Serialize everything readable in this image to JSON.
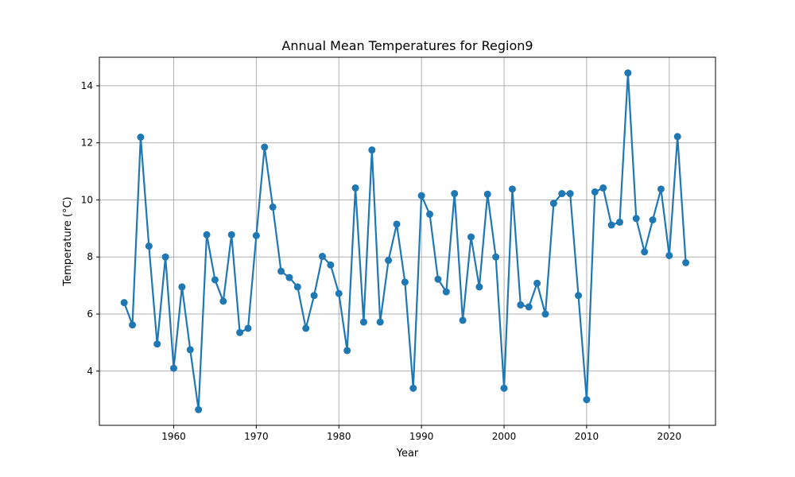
{
  "chart_data": {
    "type": "line",
    "title": "Annual Mean Temperatures for Region9",
    "xlabel": "Year",
    "ylabel": "Temperature (°C)",
    "xlim": [
      1951,
      2025.6
    ],
    "ylim": [
      2.1,
      15.0
    ],
    "xticks": [
      1960,
      1970,
      1980,
      1990,
      2000,
      2010,
      2020
    ],
    "yticks": [
      4,
      6,
      8,
      10,
      12,
      14
    ],
    "grid": true,
    "legend": "none",
    "marker": "circle",
    "color": "#1f77b4",
    "series": [
      {
        "x": [
          1954,
          1955,
          1956,
          1957,
          1958,
          1959,
          1960,
          1961,
          1962,
          1963,
          1964,
          1965,
          1966,
          1967,
          1968,
          1969,
          1970,
          1971,
          1972,
          1973,
          1974,
          1975,
          1976,
          1977,
          1978,
          1979,
          1980,
          1981,
          1982,
          1983,
          1984,
          1985,
          1986,
          1987,
          1988,
          1989,
          1990,
          1991,
          1992,
          1993,
          1994,
          1995,
          1996,
          1997,
          1998,
          1999,
          2000,
          2001,
          2002,
          2003,
          2004,
          2005,
          2006,
          2007,
          2008,
          2009,
          2010,
          2011,
          2012,
          2013,
          2014,
          2015,
          2016,
          2017,
          2018,
          2019,
          2020,
          2021,
          2022
        ],
        "values": [
          6.4,
          5.62,
          12.2,
          8.38,
          4.95,
          8.0,
          4.1,
          6.95,
          4.75,
          2.65,
          8.78,
          7.2,
          6.45,
          8.78,
          5.35,
          5.5,
          8.75,
          11.85,
          9.75,
          7.5,
          7.28,
          6.95,
          5.5,
          6.65,
          8.02,
          7.72,
          6.72,
          4.72,
          10.42,
          5.72,
          11.75,
          5.72,
          7.88,
          9.15,
          7.12,
          3.4,
          10.15,
          9.5,
          7.22,
          6.78,
          10.22,
          5.78,
          8.7,
          6.95,
          10.2,
          8.0,
          3.4,
          10.38,
          6.32,
          6.25,
          7.08,
          6.0,
          9.88,
          10.22,
          10.22,
          6.65,
          3.0,
          10.28,
          10.42,
          9.12,
          9.22,
          14.45,
          9.35,
          8.18,
          9.3,
          10.38,
          8.05,
          12.22,
          7.8
        ]
      }
    ]
  }
}
